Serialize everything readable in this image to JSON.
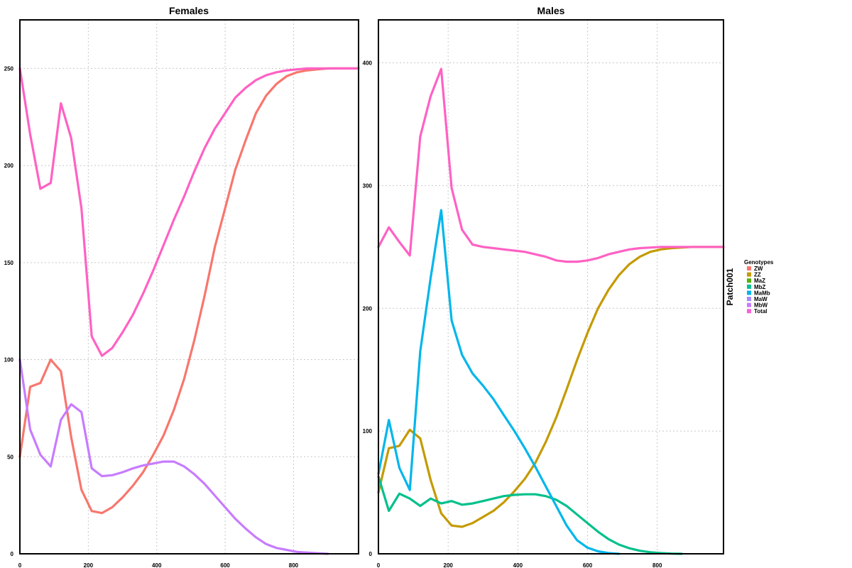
{
  "chart_data": [
    {
      "type": "line",
      "title": "Females",
      "xlabel": "",
      "ylabel": "",
      "xlim": [
        0,
        990
      ],
      "ylim": [
        0,
        275
      ],
      "x_ticks": [
        0,
        200,
        400,
        600,
        800
      ],
      "y_ticks": [
        0,
        50,
        100,
        150,
        200,
        250
      ],
      "grid": true,
      "series": [
        {
          "name": "ZW",
          "color": "#F8766D",
          "x": [
            0,
            30,
            60,
            90,
            120,
            150,
            180,
            210,
            240,
            270,
            300,
            330,
            360,
            390,
            420,
            450,
            480,
            510,
            540,
            570,
            600,
            630,
            660,
            690,
            720,
            750,
            780,
            810,
            840,
            870,
            900,
            990
          ],
          "y": [
            50,
            86,
            88,
            100,
            94,
            60,
            33,
            22,
            21,
            24,
            29,
            35,
            42,
            51,
            61,
            74,
            90,
            110,
            133,
            158,
            178,
            198,
            213,
            227,
            236,
            242,
            246,
            248,
            249,
            249.5,
            250,
            250
          ]
        },
        {
          "name": "MbW",
          "color": "#C77CFF",
          "x": [
            0,
            30,
            60,
            90,
            120,
            150,
            180,
            210,
            240,
            270,
            300,
            330,
            360,
            390,
            420,
            450,
            480,
            510,
            540,
            570,
            600,
            630,
            660,
            690,
            720,
            750,
            780,
            810,
            840,
            870,
            900
          ],
          "y": [
            100,
            64,
            51,
            45,
            69,
            77,
            73,
            44,
            40,
            40.5,
            42,
            44,
            45.5,
            46.5,
            47.5,
            47.5,
            45,
            41,
            36,
            30,
            24,
            18,
            13,
            8.5,
            5,
            3,
            2,
            1,
            0.6,
            0.3,
            0
          ]
        },
        {
          "name": "Total",
          "color": "#FF61C3",
          "x": [
            0,
            30,
            60,
            90,
            120,
            150,
            180,
            210,
            240,
            270,
            300,
            330,
            360,
            390,
            420,
            450,
            480,
            510,
            540,
            570,
            600,
            630,
            660,
            690,
            720,
            750,
            780,
            810,
            840,
            870,
            900,
            990
          ],
          "y": [
            250,
            216,
            188,
            191,
            232,
            214,
            178,
            112,
            102,
            106,
            114,
            123,
            134,
            146,
            159,
            172,
            184,
            197,
            209,
            219,
            227,
            235,
            240,
            244,
            246.5,
            248,
            249,
            249.5,
            250,
            250,
            250,
            250
          ]
        }
      ]
    },
    {
      "type": "line",
      "title": "Males",
      "xlabel": "",
      "ylabel": "",
      "xlim": [
        0,
        990
      ],
      "ylim": [
        0,
        435
      ],
      "x_ticks": [
        0,
        200,
        400,
        600,
        800
      ],
      "y_ticks": [
        0,
        100,
        200,
        300,
        400
      ],
      "grid": true,
      "series": [
        {
          "name": "ZZ",
          "color": "#C49A00",
          "x": [
            0,
            30,
            60,
            90,
            120,
            150,
            180,
            210,
            240,
            270,
            300,
            330,
            360,
            390,
            420,
            450,
            480,
            510,
            540,
            570,
            600,
            630,
            660,
            690,
            720,
            750,
            780,
            810,
            840,
            870,
            900,
            990
          ],
          "y": [
            50,
            86,
            88,
            101,
            94,
            60,
            33,
            23,
            22,
            25,
            30,
            35,
            42,
            51,
            61,
            74,
            91,
            111,
            134,
            158,
            180,
            200,
            215,
            227,
            236,
            242,
            246,
            248,
            249,
            249.5,
            250,
            250
          ]
        },
        {
          "name": "MbZ",
          "color": "#00C08B",
          "x": [
            0,
            30,
            60,
            90,
            120,
            150,
            180,
            210,
            240,
            270,
            300,
            330,
            360,
            390,
            420,
            450,
            480,
            510,
            540,
            570,
            600,
            630,
            660,
            690,
            720,
            750,
            780,
            810,
            840,
            870
          ],
          "y": [
            63,
            35,
            49,
            45,
            39,
            45,
            41,
            43,
            40,
            41,
            43,
            45,
            47,
            48,
            48.5,
            48.5,
            47,
            44,
            39,
            32,
            25,
            18,
            12,
            7.5,
            4.5,
            2.5,
            1.3,
            0.6,
            0.2,
            0
          ]
        },
        {
          "name": "MaMb",
          "color": "#00B6EB",
          "x": [
            0,
            30,
            60,
            90,
            120,
            150,
            180,
            210,
            240,
            270,
            300,
            330,
            360,
            390,
            420,
            450,
            480,
            510,
            540,
            570,
            600,
            630,
            660,
            690
          ],
          "y": [
            65,
            109,
            70,
            52,
            165,
            225,
            280,
            190,
            162,
            147,
            137,
            126,
            113,
            100,
            86,
            71,
            55,
            39,
            23,
            11,
            5,
            2,
            0.6,
            0
          ]
        },
        {
          "name": "Total",
          "color": "#FF61C3",
          "x": [
            0,
            30,
            60,
            90,
            120,
            150,
            180,
            210,
            240,
            270,
            300,
            330,
            360,
            390,
            420,
            450,
            480,
            510,
            540,
            570,
            600,
            630,
            660,
            690,
            720,
            750,
            780,
            810,
            840,
            870,
            900,
            990
          ],
          "y": [
            250,
            266,
            254,
            243,
            340,
            373,
            395,
            298,
            264,
            252,
            250,
            249,
            248,
            247,
            246,
            244,
            242,
            239,
            238,
            238,
            239,
            241,
            244,
            246,
            248,
            249,
            249.5,
            250,
            250,
            250,
            250,
            250
          ]
        }
      ]
    }
  ],
  "legend": {
    "title": "Genotypes",
    "placement": "right",
    "items": [
      {
        "label": "ZW",
        "color": "#F8766D"
      },
      {
        "label": "ZZ",
        "color": "#C49A00"
      },
      {
        "label": "MaZ",
        "color": "#53B400"
      },
      {
        "label": "MbZ",
        "color": "#00C094"
      },
      {
        "label": "MaMb",
        "color": "#00B6EB"
      },
      {
        "label": "MaW",
        "color": "#A58AFF"
      },
      {
        "label": "MbW",
        "color": "#C77CFF"
      },
      {
        "label": "Total",
        "color": "#FB61D7"
      }
    ]
  },
  "strip_label": "Patch001"
}
